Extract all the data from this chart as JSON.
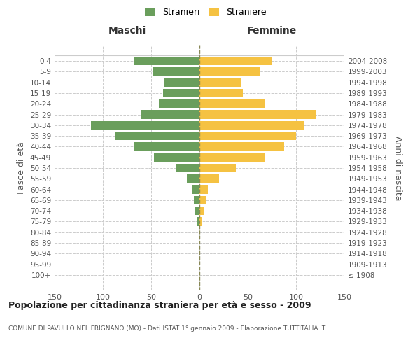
{
  "age_groups": [
    "100+",
    "95-99",
    "90-94",
    "85-89",
    "80-84",
    "75-79",
    "70-74",
    "65-69",
    "60-64",
    "55-59",
    "50-54",
    "45-49",
    "40-44",
    "35-39",
    "30-34",
    "25-29",
    "20-24",
    "15-19",
    "10-14",
    "5-9",
    "0-4"
  ],
  "birth_years": [
    "≤ 1908",
    "1909-1913",
    "1914-1918",
    "1919-1923",
    "1924-1928",
    "1929-1933",
    "1934-1938",
    "1939-1943",
    "1944-1948",
    "1949-1953",
    "1954-1958",
    "1959-1963",
    "1964-1968",
    "1969-1973",
    "1974-1978",
    "1979-1983",
    "1984-1988",
    "1989-1993",
    "1994-1998",
    "1999-2003",
    "2004-2008"
  ],
  "maschi": [
    0,
    0,
    0,
    0,
    0,
    3,
    4,
    6,
    8,
    13,
    25,
    47,
    68,
    87,
    112,
    60,
    42,
    38,
    37,
    48,
    68
  ],
  "femmine": [
    0,
    0,
    0,
    0,
    0,
    3,
    4,
    7,
    9,
    20,
    38,
    68,
    88,
    100,
    108,
    120,
    68,
    45,
    43,
    62,
    75
  ],
  "male_color": "#6a9e5c",
  "female_color": "#f5c242",
  "grid_color": "#cccccc",
  "bg_color": "#ffffff",
  "title": "Popolazione per cittadinanza straniera per età e sesso - 2009",
  "subtitle": "COMUNE DI PAVULLO NEL FRIGNANO (MO) - Dati ISTAT 1° gennaio 2009 - Elaborazione TUTTITALIA.IT",
  "ylabel_left": "Fasce di età",
  "ylabel_right": "Anni di nascita",
  "legend_male": "Stranieri",
  "legend_female": "Straniere",
  "xlim": 150
}
